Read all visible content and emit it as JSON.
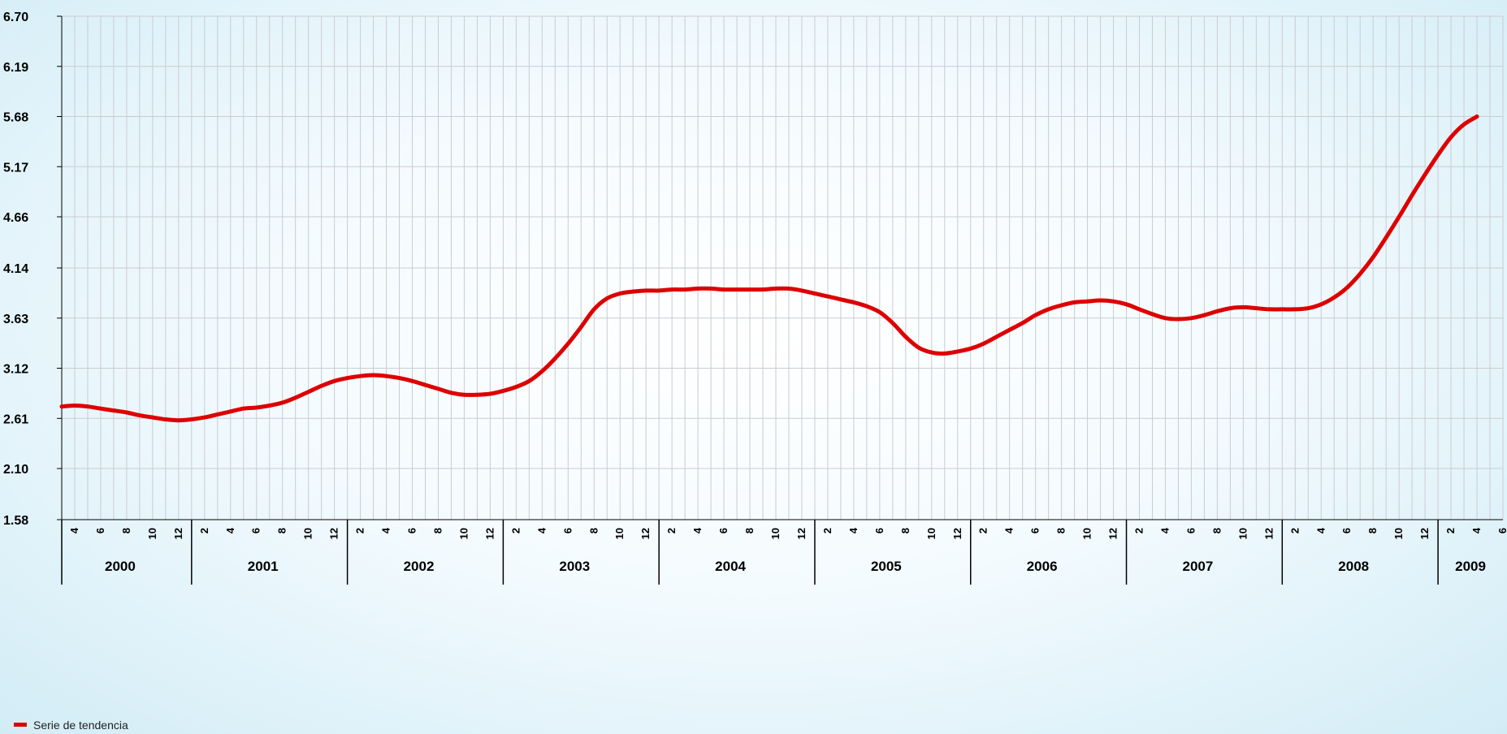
{
  "chart_data": {
    "type": "line",
    "title": "",
    "xlabel": "",
    "ylabel": "",
    "ylim": [
      1.58,
      6.7
    ],
    "y_ticks": [
      "6.70",
      "6.19",
      "5.68",
      "5.17",
      "4.66",
      "4.14",
      "3.63",
      "3.12",
      "2.61",
      "2.10",
      "1.58"
    ],
    "grid": true,
    "legend_position": "bottom-left",
    "x_start": "2000-03",
    "x_end": "2009-06",
    "month_ticks": [
      4,
      6,
      8,
      10,
      12,
      2,
      4,
      6,
      8,
      10,
      12,
      2,
      4,
      6,
      8,
      10,
      12,
      2,
      4,
      6,
      8,
      10,
      12,
      2,
      4,
      6,
      8,
      10,
      12,
      2,
      4,
      6,
      8,
      10,
      12,
      2,
      4,
      6,
      8,
      10,
      12,
      2,
      4,
      6,
      8,
      10,
      12,
      2,
      4,
      6,
      8,
      10,
      12,
      2,
      4,
      6
    ],
    "years": [
      "2000",
      "2001",
      "2002",
      "2003",
      "2004",
      "2005",
      "2006",
      "2007",
      "2008",
      "2009"
    ],
    "series": [
      {
        "name": "Serie de tendencia",
        "color": "#dd0000",
        "points": [
          [
            "2000-03",
            2.73
          ],
          [
            "2000-04",
            2.74
          ],
          [
            "2000-05",
            2.73
          ],
          [
            "2000-06",
            2.71
          ],
          [
            "2000-07",
            2.69
          ],
          [
            "2000-08",
            2.67
          ],
          [
            "2000-09",
            2.64
          ],
          [
            "2000-10",
            2.62
          ],
          [
            "2000-11",
            2.6
          ],
          [
            "2000-12",
            2.59
          ],
          [
            "2001-01",
            2.6
          ],
          [
            "2001-02",
            2.62
          ],
          [
            "2001-03",
            2.65
          ],
          [
            "2001-04",
            2.68
          ],
          [
            "2001-05",
            2.71
          ],
          [
            "2001-06",
            2.72
          ],
          [
            "2001-07",
            2.74
          ],
          [
            "2001-08",
            2.77
          ],
          [
            "2001-09",
            2.82
          ],
          [
            "2001-10",
            2.88
          ],
          [
            "2001-11",
            2.94
          ],
          [
            "2001-12",
            2.99
          ],
          [
            "2002-01",
            3.02
          ],
          [
            "2002-02",
            3.04
          ],
          [
            "2002-03",
            3.05
          ],
          [
            "2002-04",
            3.04
          ],
          [
            "2002-05",
            3.02
          ],
          [
            "2002-06",
            2.99
          ],
          [
            "2002-07",
            2.95
          ],
          [
            "2002-08",
            2.91
          ],
          [
            "2002-09",
            2.87
          ],
          [
            "2002-10",
            2.85
          ],
          [
            "2002-11",
            2.85
          ],
          [
            "2002-12",
            2.86
          ],
          [
            "2003-01",
            2.89
          ],
          [
            "2003-02",
            2.93
          ],
          [
            "2003-03",
            2.99
          ],
          [
            "2003-04",
            3.09
          ],
          [
            "2003-05",
            3.22
          ],
          [
            "2003-06",
            3.37
          ],
          [
            "2003-07",
            3.54
          ],
          [
            "2003-08",
            3.72
          ],
          [
            "2003-09",
            3.83
          ],
          [
            "2003-10",
            3.88
          ],
          [
            "2003-11",
            3.9
          ],
          [
            "2003-12",
            3.91
          ],
          [
            "2004-01",
            3.91
          ],
          [
            "2004-02",
            3.92
          ],
          [
            "2004-03",
            3.92
          ],
          [
            "2004-04",
            3.93
          ],
          [
            "2004-05",
            3.93
          ],
          [
            "2004-06",
            3.92
          ],
          [
            "2004-07",
            3.92
          ],
          [
            "2004-08",
            3.92
          ],
          [
            "2004-09",
            3.92
          ],
          [
            "2004-10",
            3.93
          ],
          [
            "2004-11",
            3.93
          ],
          [
            "2004-12",
            3.91
          ],
          [
            "2005-01",
            3.88
          ],
          [
            "2005-02",
            3.85
          ],
          [
            "2005-03",
            3.82
          ],
          [
            "2005-04",
            3.79
          ],
          [
            "2005-05",
            3.75
          ],
          [
            "2005-06",
            3.69
          ],
          [
            "2005-07",
            3.58
          ],
          [
            "2005-08",
            3.44
          ],
          [
            "2005-09",
            3.33
          ],
          [
            "2005-10",
            3.28
          ],
          [
            "2005-11",
            3.27
          ],
          [
            "2005-12",
            3.29
          ],
          [
            "2006-01",
            3.32
          ],
          [
            "2006-02",
            3.37
          ],
          [
            "2006-03",
            3.44
          ],
          [
            "2006-04",
            3.51
          ],
          [
            "2006-05",
            3.58
          ],
          [
            "2006-06",
            3.66
          ],
          [
            "2006-07",
            3.72
          ],
          [
            "2006-08",
            3.76
          ],
          [
            "2006-09",
            3.79
          ],
          [
            "2006-10",
            3.8
          ],
          [
            "2006-11",
            3.81
          ],
          [
            "2006-12",
            3.8
          ],
          [
            "2007-01",
            3.77
          ],
          [
            "2007-02",
            3.72
          ],
          [
            "2007-03",
            3.67
          ],
          [
            "2007-04",
            3.63
          ],
          [
            "2007-05",
            3.62
          ],
          [
            "2007-06",
            3.63
          ],
          [
            "2007-07",
            3.66
          ],
          [
            "2007-08",
            3.7
          ],
          [
            "2007-09",
            3.73
          ],
          [
            "2007-10",
            3.74
          ],
          [
            "2007-11",
            3.73
          ],
          [
            "2007-12",
            3.72
          ],
          [
            "2008-01",
            3.72
          ],
          [
            "2008-02",
            3.72
          ],
          [
            "2008-03",
            3.73
          ],
          [
            "2008-04",
            3.77
          ],
          [
            "2008-05",
            3.84
          ],
          [
            "2008-06",
            3.94
          ],
          [
            "2008-07",
            4.08
          ],
          [
            "2008-08",
            4.25
          ],
          [
            "2008-09",
            4.45
          ],
          [
            "2008-10",
            4.66
          ],
          [
            "2008-11",
            4.88
          ],
          [
            "2008-12",
            5.09
          ],
          [
            "2009-01",
            5.29
          ],
          [
            "2009-02",
            5.47
          ],
          [
            "2009-03",
            5.6
          ],
          [
            "2009-04",
            5.68
          ]
        ]
      }
    ]
  }
}
